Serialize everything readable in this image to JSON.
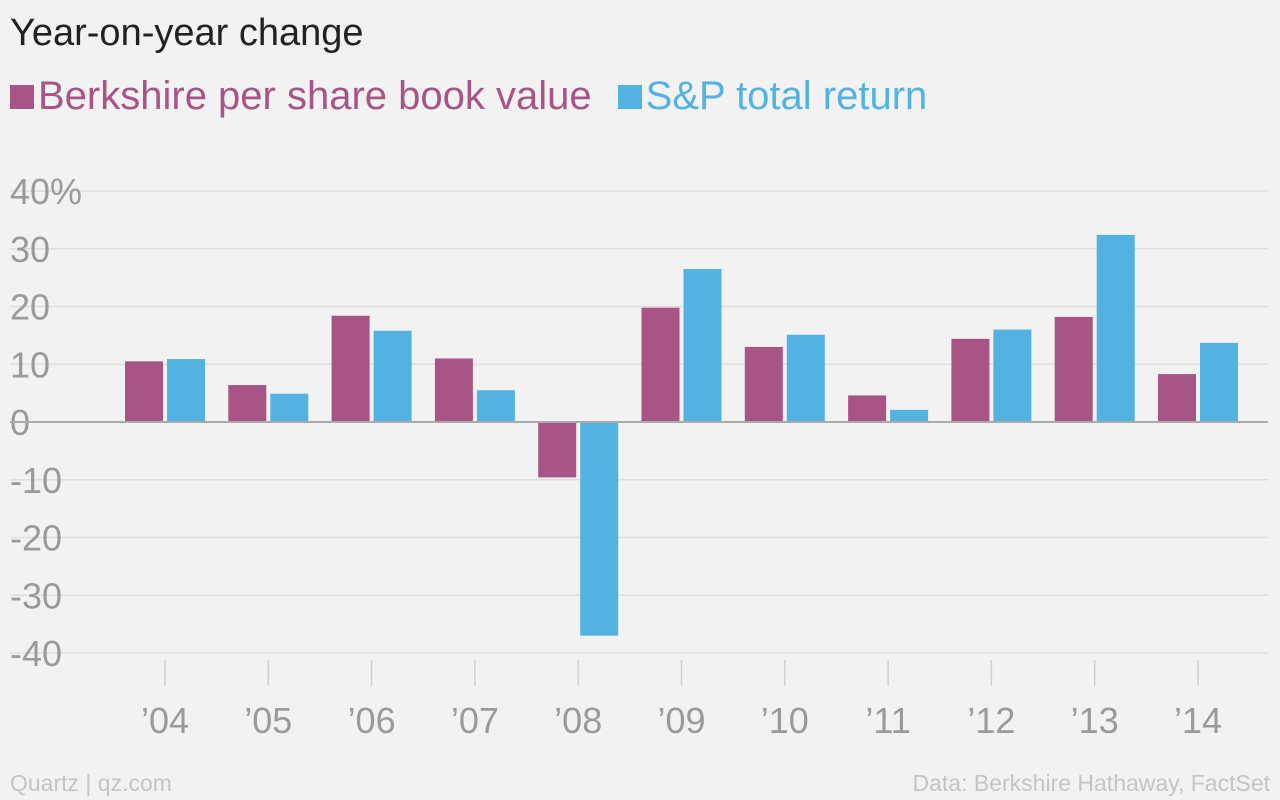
{
  "header": {
    "title": "Year-on-year change"
  },
  "footer": {
    "source_left": "Quartz | qz.com",
    "source_right": "Data: Berkshire Hathaway, FactSet"
  },
  "chart_data": {
    "type": "bar",
    "title": "Year-on-year change",
    "xlabel": "",
    "ylabel": "",
    "categories": [
      "’04",
      "’05",
      "’06",
      "’07",
      "’08",
      "’09",
      "’10",
      "’11",
      "’12",
      "’13",
      "’14"
    ],
    "series": [
      {
        "name": "Berkshire per share book value",
        "color": "#a85585",
        "values": [
          10.5,
          6.4,
          18.4,
          11.0,
          -9.6,
          19.8,
          13.0,
          4.6,
          14.4,
          18.2,
          8.3
        ]
      },
      {
        "name": "S&P total return",
        "color": "#52b3e3",
        "values": [
          10.9,
          4.9,
          15.8,
          5.5,
          -37.0,
          26.5,
          15.1,
          2.1,
          16.0,
          32.4,
          13.7
        ]
      }
    ],
    "y_ticks": [
      "40%",
      "30",
      "20",
      "10",
      "0",
      "-10",
      "-20",
      "-30",
      "-40"
    ],
    "y_tick_values": [
      40,
      30,
      20,
      10,
      0,
      -10,
      -20,
      -30,
      -40
    ],
    "ylim": [
      -40,
      40
    ],
    "grid": true,
    "legend_position": "top-left"
  }
}
